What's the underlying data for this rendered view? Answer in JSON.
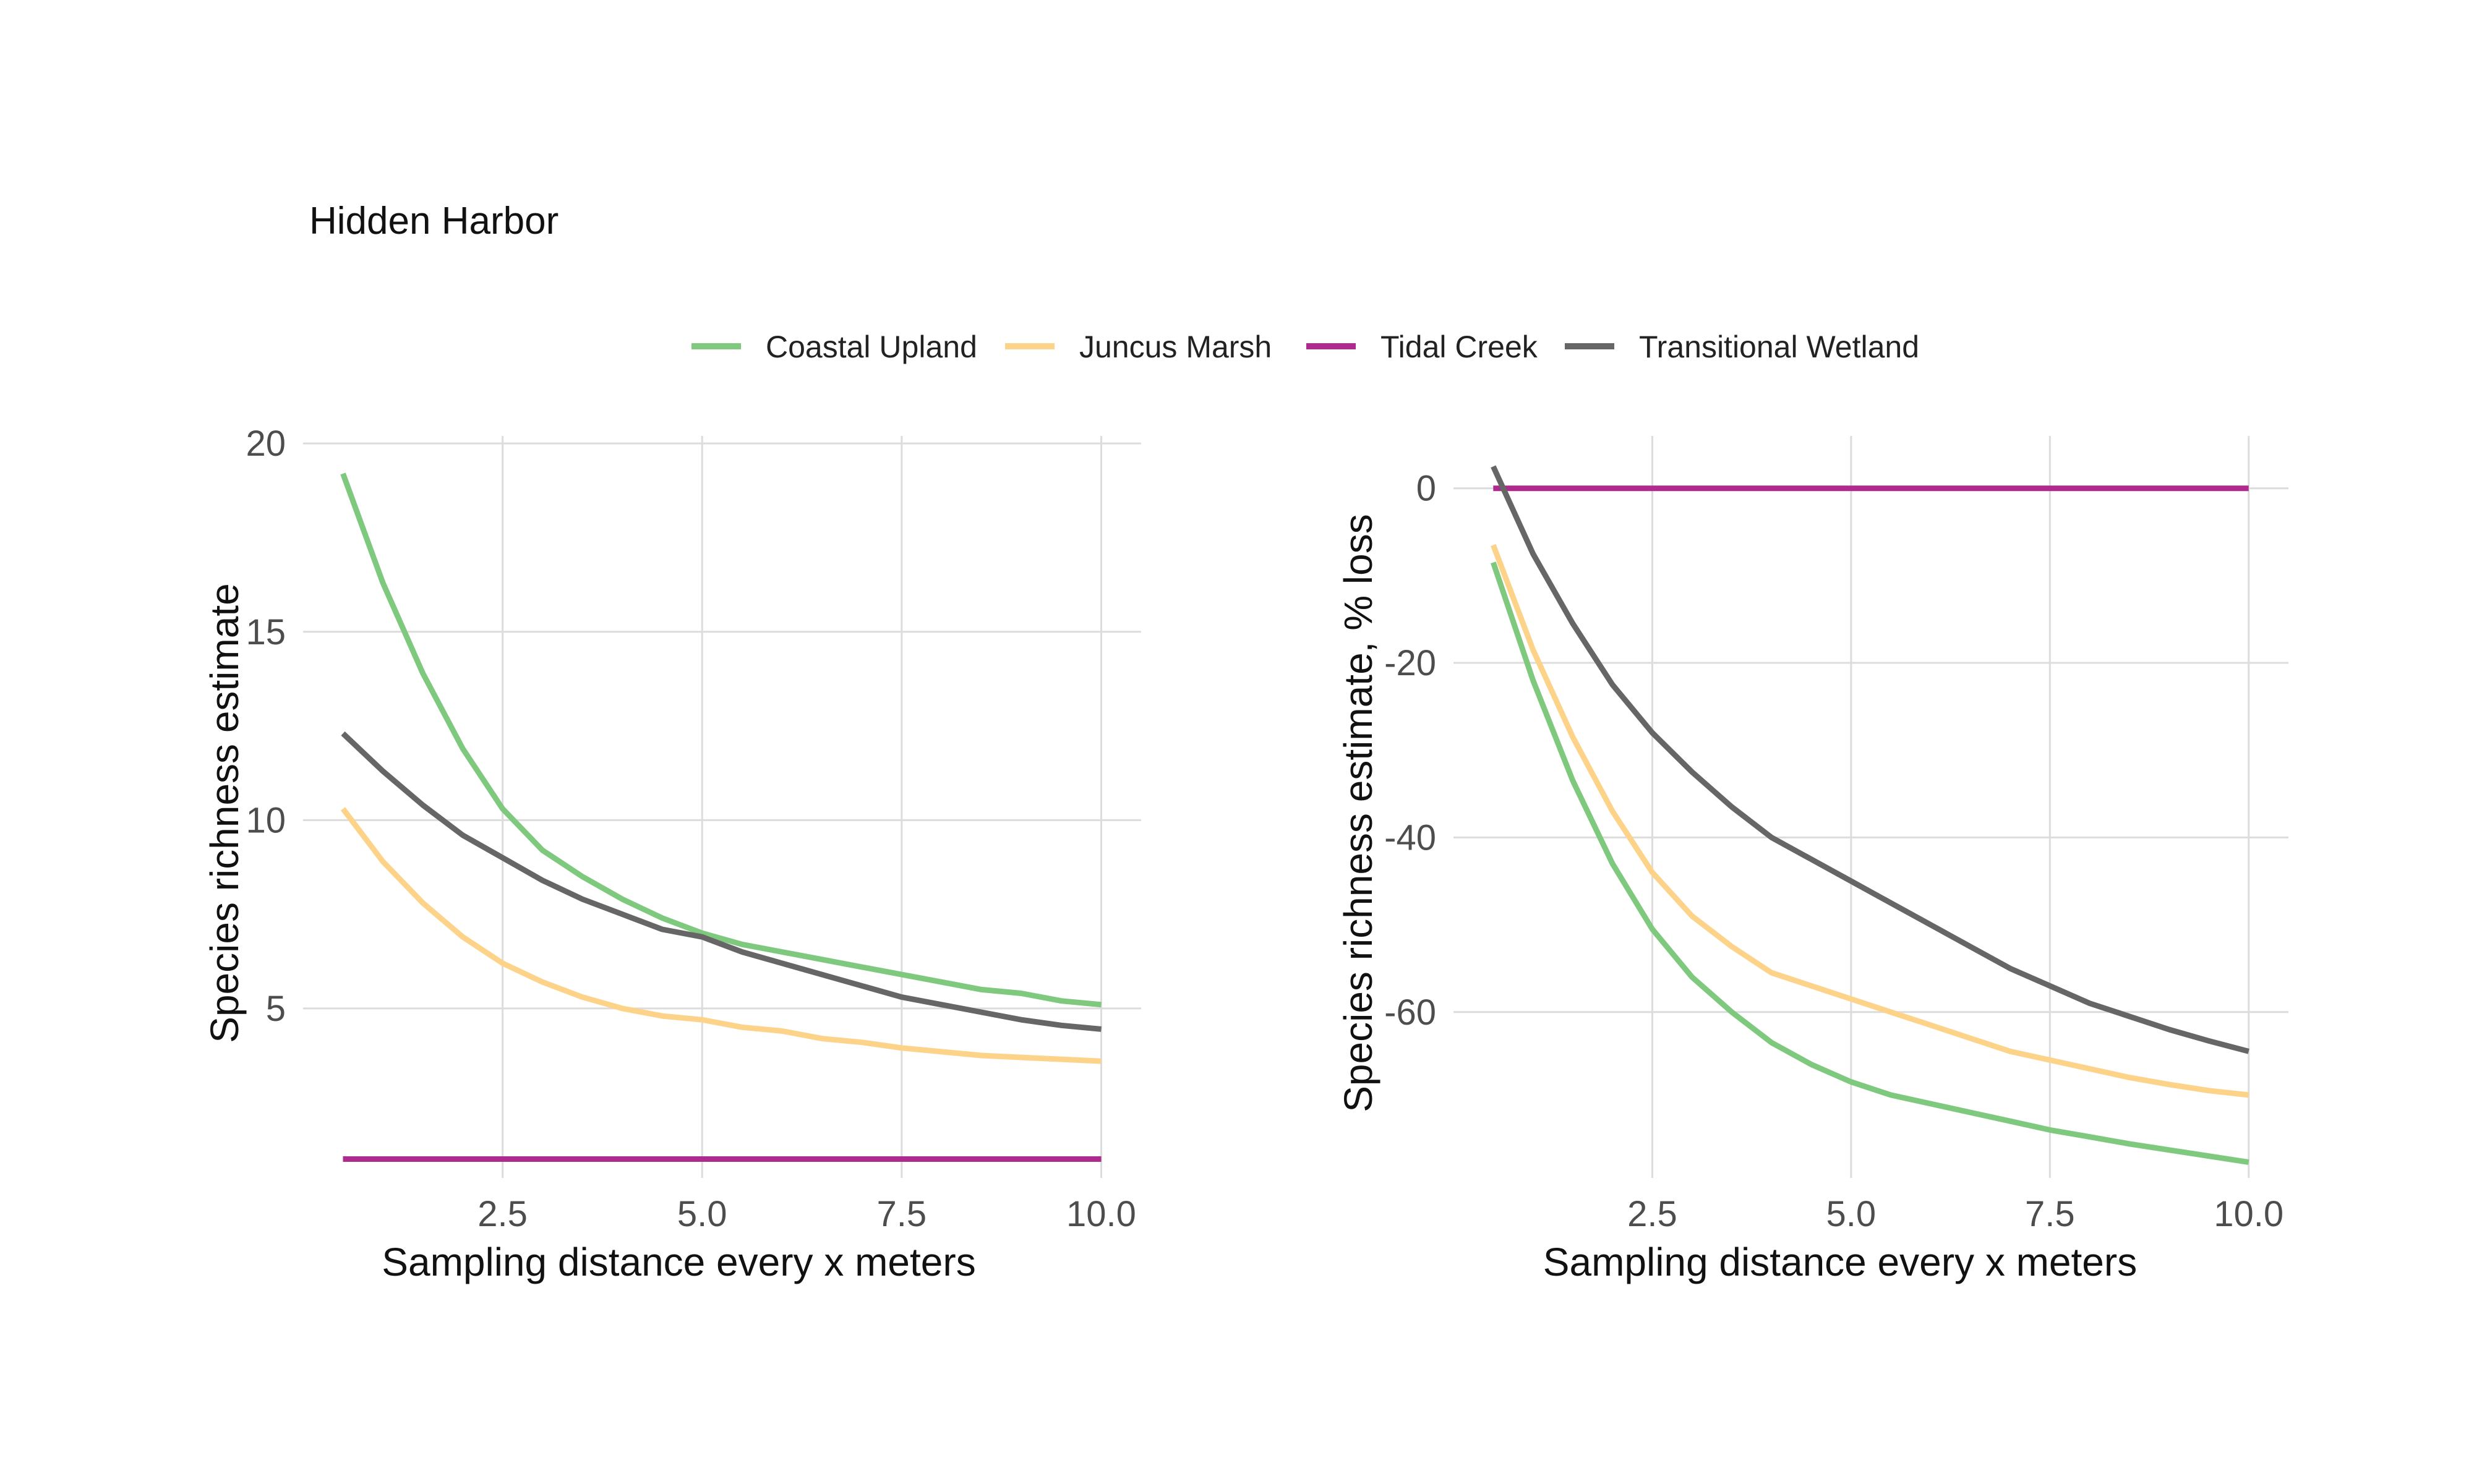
{
  "title": "Hidden Harbor",
  "legend": [
    {
      "label": "Coastal Upland",
      "color": "#7fc97f"
    },
    {
      "label": "Juncus Marsh",
      "color": "#fdd38a"
    },
    {
      "label": "Tidal Creek",
      "color": "#ae2a8f"
    },
    {
      "label": "Transitional Wetland",
      "color": "#666666"
    }
  ],
  "chart_data": [
    {
      "type": "line",
      "xlabel": "Sampling distance every x meters",
      "ylabel": "Species richness estimate",
      "xlim": [
        0.0,
        10.5
      ],
      "ylim": [
        0.5,
        20.2
      ],
      "xticks": [
        2.5,
        5.0,
        7.5,
        10.0
      ],
      "xtick_labels": [
        "2.5",
        "5.0",
        "7.5",
        "10.0"
      ],
      "yticks": [
        5,
        10,
        15,
        20
      ],
      "ytick_labels": [
        "5",
        "10",
        "15",
        "20"
      ],
      "grid": true,
      "x": [
        0.5,
        1.0,
        1.5,
        2.0,
        2.5,
        3.0,
        3.5,
        4.0,
        4.5,
        5.0,
        5.5,
        6.0,
        6.5,
        7.0,
        7.5,
        8.0,
        8.5,
        9.0,
        9.5,
        10.0
      ],
      "series": [
        {
          "name": "Coastal Upland",
          "color": "#7fc97f",
          "values": [
            19.2,
            16.3,
            13.9,
            11.9,
            10.3,
            9.2,
            8.5,
            7.9,
            7.4,
            7.0,
            6.7,
            6.5,
            6.3,
            6.1,
            5.9,
            5.7,
            5.5,
            5.4,
            5.2,
            5.1
          ]
        },
        {
          "name": "Juncus Marsh",
          "color": "#fdd38a",
          "values": [
            10.3,
            8.9,
            7.8,
            6.9,
            6.2,
            5.7,
            5.3,
            5.0,
            4.8,
            4.7,
            4.5,
            4.4,
            4.2,
            4.1,
            3.95,
            3.85,
            3.75,
            3.7,
            3.65,
            3.6
          ]
        },
        {
          "name": "Tidal Creek",
          "color": "#ae2a8f",
          "values": [
            1.0,
            1.0,
            1.0,
            1.0,
            1.0,
            1.0,
            1.0,
            1.0,
            1.0,
            1.0,
            1.0,
            1.0,
            1.0,
            1.0,
            1.0,
            1.0,
            1.0,
            1.0,
            1.0,
            1.0
          ]
        },
        {
          "name": "Transitional Wetland",
          "color": "#666666",
          "values": [
            12.3,
            11.3,
            10.4,
            9.6,
            9.0,
            8.4,
            7.9,
            7.5,
            7.1,
            6.9,
            6.5,
            6.2,
            5.9,
            5.6,
            5.3,
            5.1,
            4.9,
            4.7,
            4.55,
            4.45
          ]
        }
      ]
    },
    {
      "type": "line",
      "xlabel": "Sampling distance every x meters",
      "ylabel": "Species richness estimate, % loss",
      "xlim": [
        0.0,
        10.5
      ],
      "ylim": [
        -79.0,
        6.0
      ],
      "xticks": [
        2.5,
        5.0,
        7.5,
        10.0
      ],
      "xtick_labels": [
        "2.5",
        "5.0",
        "7.5",
        "10.0"
      ],
      "yticks": [
        0,
        -20,
        -40,
        -60
      ],
      "ytick_labels": [
        "0",
        "-20",
        "-40",
        "-60"
      ],
      "grid": true,
      "x": [
        0.5,
        1.0,
        1.5,
        2.0,
        2.5,
        3.0,
        3.5,
        4.0,
        4.5,
        5.0,
        5.5,
        6.0,
        6.5,
        7.0,
        7.5,
        8.0,
        8.5,
        9.0,
        9.5,
        10.0
      ],
      "series": [
        {
          "name": "Coastal Upland",
          "color": "#7fc97f",
          "values": [
            -8.5,
            -22,
            -33.5,
            -43,
            -50.5,
            -56,
            -60,
            -63.5,
            -66,
            -68,
            -69.5,
            -70.5,
            -71.5,
            -72.5,
            -73.5,
            -74.3,
            -75.1,
            -75.8,
            -76.5,
            -77.2
          ]
        },
        {
          "name": "Juncus Marsh",
          "color": "#fdd38a",
          "values": [
            -6.5,
            -18.5,
            -28.5,
            -37,
            -44,
            -49,
            -52.5,
            -55.5,
            -57,
            -58.5,
            -60,
            -61.5,
            -63,
            -64.5,
            -65.5,
            -66.5,
            -67.5,
            -68.3,
            -69,
            -69.5
          ]
        },
        {
          "name": "Tidal Creek",
          "color": "#ae2a8f",
          "values": [
            0,
            0,
            0,
            0,
            0,
            0,
            0,
            0,
            0,
            0,
            0,
            0,
            0,
            0,
            0,
            0,
            0,
            0,
            0,
            0
          ]
        },
        {
          "name": "Transitional Wetland",
          "color": "#666666",
          "values": [
            2.5,
            -7.5,
            -15.5,
            -22.5,
            -28,
            -32.5,
            -36.5,
            -40,
            -42.5,
            -45,
            -47.5,
            -50,
            -52.5,
            -55,
            -57,
            -59,
            -60.5,
            -62,
            -63.3,
            -64.5
          ]
        }
      ]
    }
  ]
}
